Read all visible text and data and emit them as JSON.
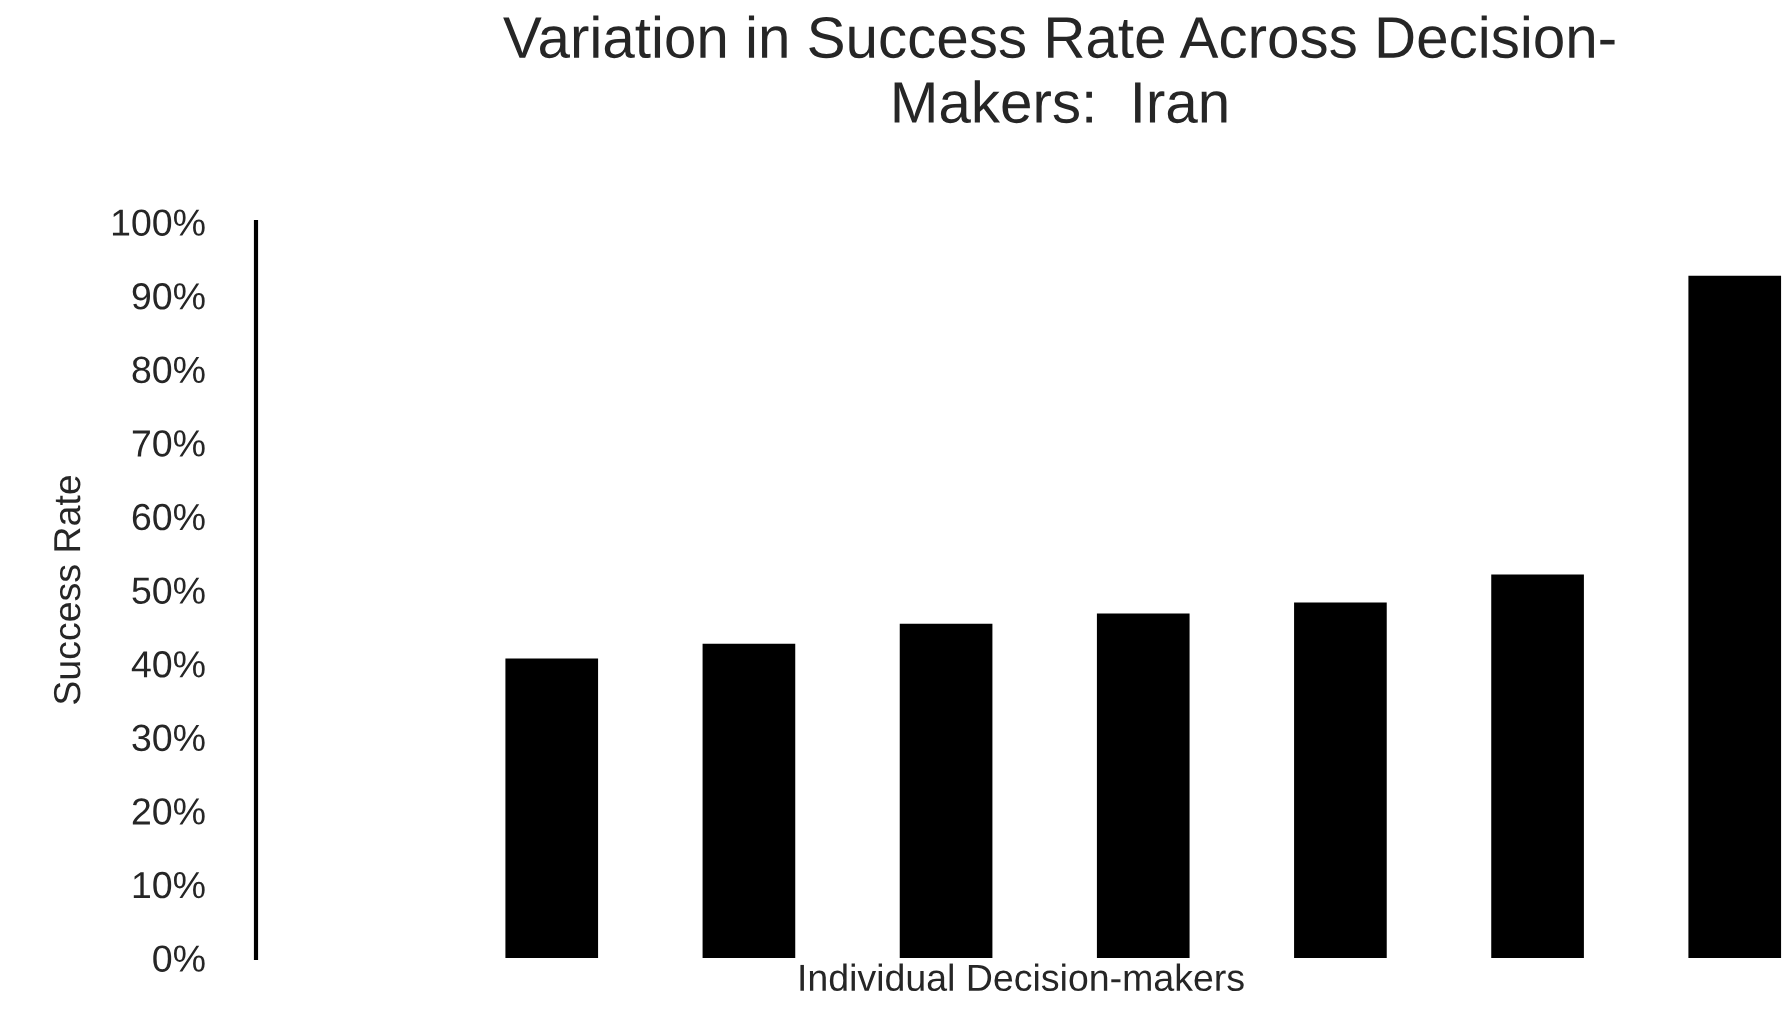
{
  "chart_data": {
    "type": "bar",
    "title": "Variation in Success Rate Across Decision-Makers:  Iran",
    "xlabel": "Individual Decision-makers",
    "ylabel": "Success Rate",
    "categories": [
      null,
      null,
      null,
      null,
      null,
      null,
      null
    ],
    "values": [
      40.7,
      42.7,
      45.4,
      46.8,
      48.3,
      52.1,
      92.7
    ],
    "color": "#000000",
    "ylim": [
      0,
      100
    ],
    "yticks": [
      {
        "value": 0,
        "label": "0%"
      },
      {
        "value": 10,
        "label": "10%"
      },
      {
        "value": 20,
        "label": "20%"
      },
      {
        "value": 30,
        "label": "30%"
      },
      {
        "value": 40,
        "label": "40%"
      },
      {
        "value": 50,
        "label": "50%"
      },
      {
        "value": 60,
        "label": "60%"
      },
      {
        "value": 70,
        "label": "70%"
      },
      {
        "value": 80,
        "label": "80%"
      },
      {
        "value": 90,
        "label": "90%"
      },
      {
        "value": 100,
        "label": "100%"
      }
    ],
    "grid": false,
    "legend": false,
    "tick_labels": "y"
  }
}
